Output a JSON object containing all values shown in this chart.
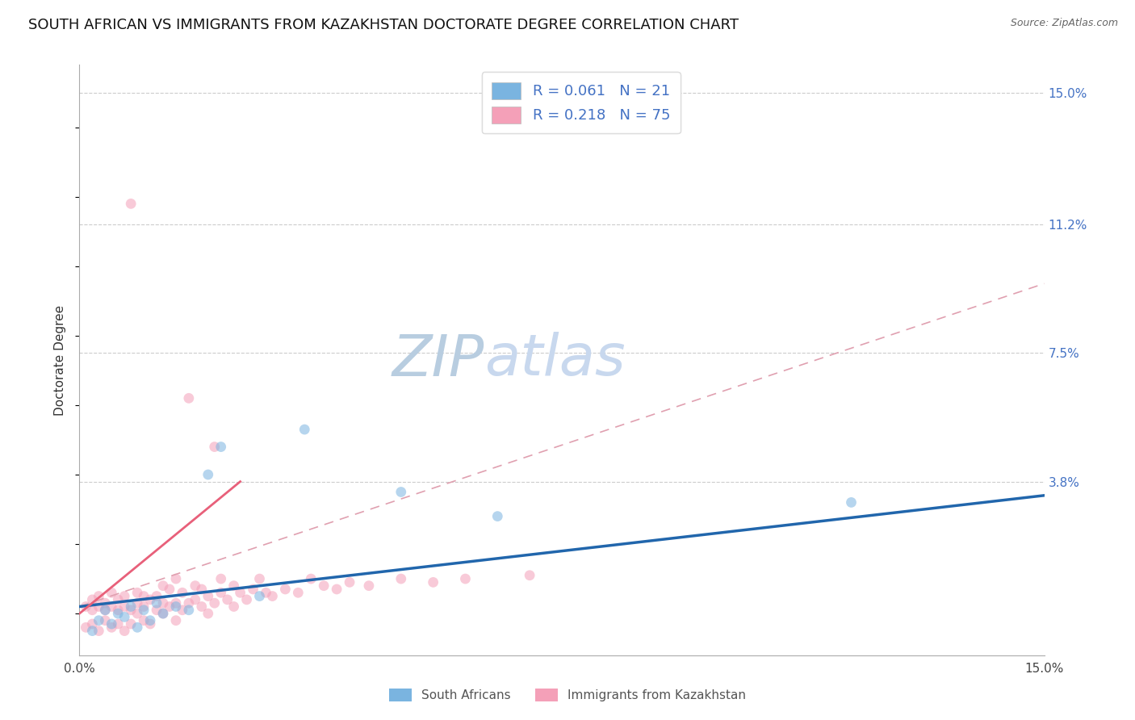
{
  "title": "SOUTH AFRICAN VS IMMIGRANTS FROM KAZAKHSTAN DOCTORATE DEGREE CORRELATION CHART",
  "source": "Source: ZipAtlas.com",
  "ylabel": "Doctorate Degree",
  "xmin": 0.0,
  "xmax": 0.15,
  "ymin": -0.012,
  "ymax": 0.158,
  "yticks": [
    0.038,
    0.075,
    0.112,
    0.15
  ],
  "ytick_labels": [
    "3.8%",
    "7.5%",
    "11.2%",
    "15.0%"
  ],
  "xtick_vals": [
    0.0,
    0.15
  ],
  "xtick_labels": [
    "0.0%",
    "15.0%"
  ],
  "legend_r_labels": [
    "R = 0.061",
    "R = 0.218"
  ],
  "legend_n_labels": [
    "N = 21",
    "N = 75"
  ],
  "legend_labels_bottom": [
    "South Africans",
    "Immigrants from Kazakhstan"
  ],
  "blue_scatter_x": [
    0.002,
    0.003,
    0.004,
    0.005,
    0.006,
    0.007,
    0.008,
    0.009,
    0.01,
    0.011,
    0.012,
    0.013,
    0.015,
    0.017,
    0.02,
    0.022,
    0.028,
    0.035,
    0.05,
    0.065,
    0.12
  ],
  "blue_scatter_y": [
    -0.005,
    -0.002,
    0.001,
    -0.003,
    0.0,
    -0.001,
    0.002,
    -0.004,
    0.001,
    -0.002,
    0.003,
    0.0,
    0.002,
    0.001,
    0.04,
    0.048,
    0.005,
    0.053,
    0.035,
    0.028,
    0.032
  ],
  "pink_scatter_x": [
    0.001,
    0.001,
    0.002,
    0.002,
    0.002,
    0.003,
    0.003,
    0.003,
    0.004,
    0.004,
    0.004,
    0.005,
    0.005,
    0.005,
    0.006,
    0.006,
    0.006,
    0.007,
    0.007,
    0.007,
    0.008,
    0.008,
    0.008,
    0.009,
    0.009,
    0.009,
    0.01,
    0.01,
    0.01,
    0.011,
    0.011,
    0.012,
    0.012,
    0.013,
    0.013,
    0.013,
    0.014,
    0.014,
    0.015,
    0.015,
    0.015,
    0.016,
    0.016,
    0.017,
    0.017,
    0.018,
    0.018,
    0.019,
    0.019,
    0.02,
    0.02,
    0.021,
    0.021,
    0.022,
    0.022,
    0.023,
    0.024,
    0.024,
    0.025,
    0.026,
    0.027,
    0.028,
    0.029,
    0.03,
    0.032,
    0.034,
    0.036,
    0.038,
    0.04,
    0.042,
    0.045,
    0.05,
    0.055,
    0.06,
    0.07
  ],
  "pink_scatter_y": [
    -0.004,
    0.002,
    -0.003,
    0.001,
    0.004,
    -0.005,
    0.002,
    0.005,
    -0.002,
    0.001,
    0.003,
    -0.004,
    0.002,
    0.006,
    -0.003,
    0.001,
    0.004,
    -0.005,
    0.002,
    0.005,
    -0.003,
    0.001,
    0.118,
    0.0,
    0.003,
    0.006,
    -0.002,
    0.002,
    0.005,
    -0.003,
    0.004,
    0.001,
    0.005,
    0.0,
    0.003,
    0.008,
    0.002,
    0.007,
    -0.002,
    0.003,
    0.01,
    0.001,
    0.006,
    0.003,
    0.062,
    0.004,
    0.008,
    0.002,
    0.007,
    0.0,
    0.005,
    0.003,
    0.048,
    0.006,
    0.01,
    0.004,
    0.002,
    0.008,
    0.006,
    0.004,
    0.007,
    0.01,
    0.006,
    0.005,
    0.007,
    0.006,
    0.01,
    0.008,
    0.007,
    0.009,
    0.008,
    0.01,
    0.009,
    0.01,
    0.011
  ],
  "blue_line_x": [
    0.0,
    0.15
  ],
  "blue_line_y": [
    0.002,
    0.034
  ],
  "pink_solid_line_x": [
    0.0,
    0.025
  ],
  "pink_solid_line_y": [
    0.0,
    0.038
  ],
  "pink_dashed_line_x": [
    0.0,
    0.15
  ],
  "pink_dashed_line_y": [
    0.002,
    0.095
  ],
  "watermark_zip": "ZIP",
  "watermark_atlas": "atlas",
  "background_color": "#ffffff",
  "scatter_alpha": 0.55,
  "scatter_size": 85,
  "blue_color": "#7ab4e0",
  "pink_color": "#f4a0b8",
  "blue_line_color": "#2166ac",
  "pink_solid_line_color": "#e8607a",
  "pink_dashed_line_color": "#e0a0b0",
  "grid_color": "#cccccc",
  "title_fontsize": 13,
  "axis_label_fontsize": 11,
  "tick_fontsize": 11,
  "watermark_fontsize_zip": 52,
  "watermark_fontsize_atlas": 52,
  "watermark_color_zip": "#b8cde0",
  "watermark_color_atlas": "#c8d8ee",
  "right_tick_color": "#4472c4",
  "legend_text_color": "#4472c4"
}
